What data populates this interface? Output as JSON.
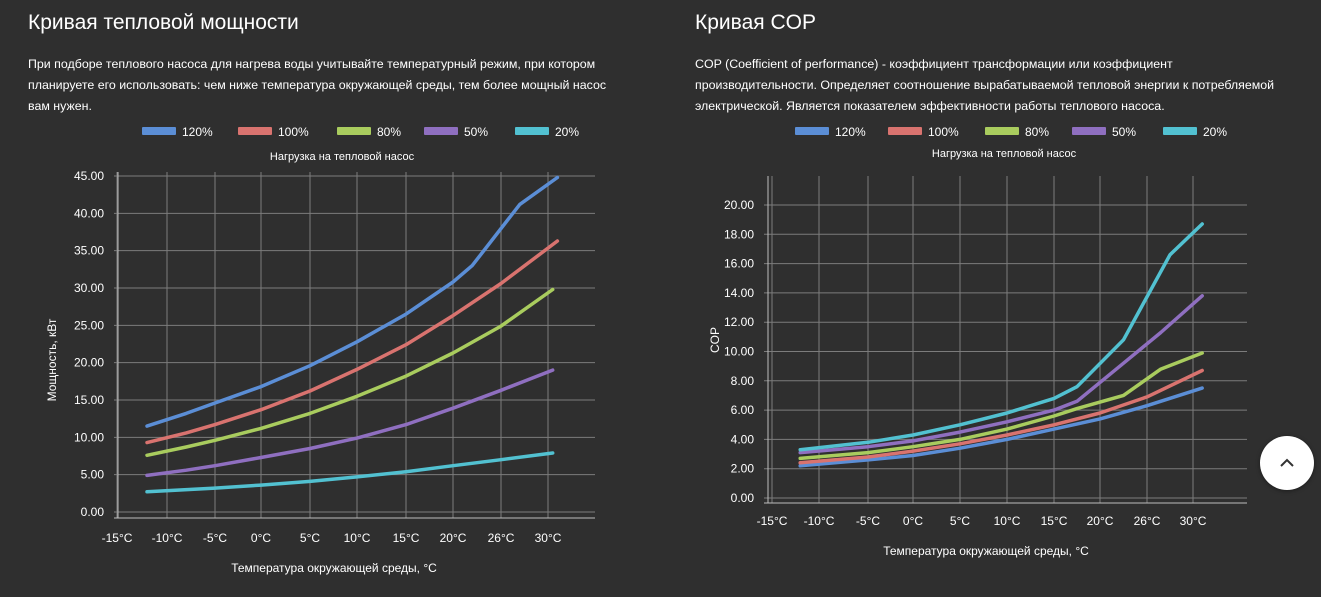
{
  "colors": {
    "background": "#2f2f2f",
    "text": "#ffffff",
    "grid": "#7c7c7c",
    "s120": "#5b8ed6",
    "s100": "#d9736f",
    "s80": "#a9cc5e",
    "s50": "#8f6fc0",
    "s20": "#52c1d1"
  },
  "power": {
    "title": "Кривая тепловой мощности",
    "description": "При подборе теплового насоса для нагрева воды учитывайте температурный режим, при котором планируете его использовать: чем ниже температура окружающей среды, тем более мощный насос вам нужен."
  },
  "cop": {
    "title": "Кривая COP",
    "description": "COP (Coefficient of performance) - коэффициент трансформации или коэффициент производительности. Определяет соотношение вырабатываемой тепловой энергии к потребляемой электрической. Является показателем эффективности работы теплового насоса."
  },
  "scroll_top": {
    "icon": "chevron-up-icon"
  },
  "chart_data": [
    {
      "type": "line",
      "title": "Нагрузка на тепловой насос",
      "xlabel": "Температура окружающей среды, °С",
      "ylabel": "Мощность, кВт",
      "categories": [
        "-15°C",
        "-10°C",
        "-5°C",
        "0°C",
        "5°C",
        "10°C",
        "15°C",
        "20°C",
        "26°C",
        "30°C"
      ],
      "x_tick_labels": [
        "-15°C",
        "-10°C",
        "-5°C",
        "0°C",
        "5°C",
        "10°C",
        "15°C",
        "20°C",
        "26°C",
        "30°C"
      ],
      "y_tick_labels": [
        "0.00",
        "5.00",
        "10.00",
        "15.00",
        "20.00",
        "25.00",
        "30.00",
        "35.00",
        "40.00",
        "45.00"
      ],
      "ylim": [
        0,
        45
      ],
      "legend": "top",
      "grid": true,
      "series": [
        {
          "name": "120%",
          "color": "#5b8ed6",
          "x": [
            -12,
            -8,
            -5,
            0,
            5,
            10,
            15,
            20,
            22,
            27,
            31
          ],
          "values": [
            11.5,
            13.2,
            14.6,
            16.8,
            19.6,
            22.8,
            26.5,
            30.8,
            33,
            41.2,
            44.8
          ]
        },
        {
          "name": "100%",
          "color": "#d9736f",
          "x": [
            -12,
            -8,
            -5,
            0,
            5,
            10,
            15,
            20,
            25,
            31
          ],
          "values": [
            9.3,
            10.6,
            11.7,
            13.7,
            16.2,
            19.1,
            22.4,
            26.3,
            30.6,
            36.3
          ]
        },
        {
          "name": "80%",
          "color": "#a9cc5e",
          "x": [
            -12,
            -8,
            -5,
            0,
            5,
            10,
            15,
            20,
            25,
            30.5
          ],
          "values": [
            7.6,
            8.7,
            9.6,
            11.2,
            13.2,
            15.5,
            18.2,
            21.3,
            24.9,
            29.8
          ]
        },
        {
          "name": "50%",
          "color": "#8f6fc0",
          "x": [
            -12,
            -8,
            -5,
            0,
            5,
            10,
            15,
            20,
            25,
            30.5
          ],
          "values": [
            4.9,
            5.6,
            6.2,
            7.3,
            8.5,
            9.9,
            11.7,
            13.9,
            16.3,
            19.0
          ]
        },
        {
          "name": "20%",
          "color": "#52c1d1",
          "x": [
            -12,
            -5,
            0,
            5,
            10,
            15,
            20,
            25,
            30.5
          ],
          "values": [
            2.7,
            3.2,
            3.6,
            4.1,
            4.7,
            5.4,
            6.2,
            7.0,
            7.9
          ]
        }
      ]
    },
    {
      "type": "line",
      "title": "Нагрузка на тепловой насос",
      "xlabel": "Температура окружающей среды, °С",
      "ylabel": "COP",
      "categories": [
        "-15°C",
        "-10°C",
        "-5°C",
        "0°C",
        "5°C",
        "10°C",
        "15°C",
        "20°C",
        "26°C",
        "30°C"
      ],
      "x_tick_labels": [
        "-15°C",
        "-10°C",
        "-5°C",
        "0°C",
        "5°C",
        "10°C",
        "15°C",
        "20°C",
        "26°C",
        "30°C"
      ],
      "y_tick_labels": [
        "0.00",
        "2.00",
        "4.00",
        "6.00",
        "8.00",
        "10.00",
        "12.00",
        "14.00",
        "16.00",
        "18.00",
        "20.00"
      ],
      "ylim": [
        0,
        20
      ],
      "legend": "top",
      "grid": true,
      "series": [
        {
          "name": "120%",
          "color": "#5b8ed6",
          "x": [
            -12,
            -5,
            0,
            5,
            10,
            15,
            20,
            25,
            31
          ],
          "values": [
            2.2,
            2.6,
            2.9,
            3.4,
            4.0,
            4.7,
            5.4,
            6.3,
            7.5
          ]
        },
        {
          "name": "100%",
          "color": "#d9736f",
          "x": [
            -12,
            -5,
            0,
            5,
            10,
            15,
            20,
            25,
            31
          ],
          "values": [
            2.4,
            2.8,
            3.2,
            3.7,
            4.3,
            5.0,
            5.8,
            6.9,
            8.7
          ]
        },
        {
          "name": "80%",
          "color": "#a9cc5e",
          "x": [
            -12,
            -5,
            0,
            5,
            10,
            15,
            17.5,
            22.5,
            26.5,
            31
          ],
          "values": [
            2.7,
            3.1,
            3.5,
            4.0,
            4.7,
            5.6,
            6.1,
            7.0,
            8.8,
            9.9
          ]
        },
        {
          "name": "50%",
          "color": "#8f6fc0",
          "x": [
            -12,
            -5,
            0,
            5,
            10,
            15,
            17.5,
            22.5,
            26.5,
            31
          ],
          "values": [
            3.1,
            3.5,
            3.9,
            4.5,
            5.2,
            6.0,
            6.6,
            9.2,
            11.3,
            13.8
          ]
        },
        {
          "name": "20%",
          "color": "#52c1d1",
          "x": [
            -12,
            -5,
            0,
            5,
            10,
            15,
            17.5,
            22.5,
            27.5,
            31
          ],
          "values": [
            3.3,
            3.8,
            4.3,
            5.0,
            5.8,
            6.8,
            7.6,
            10.8,
            16.6,
            18.7
          ]
        }
      ]
    }
  ]
}
